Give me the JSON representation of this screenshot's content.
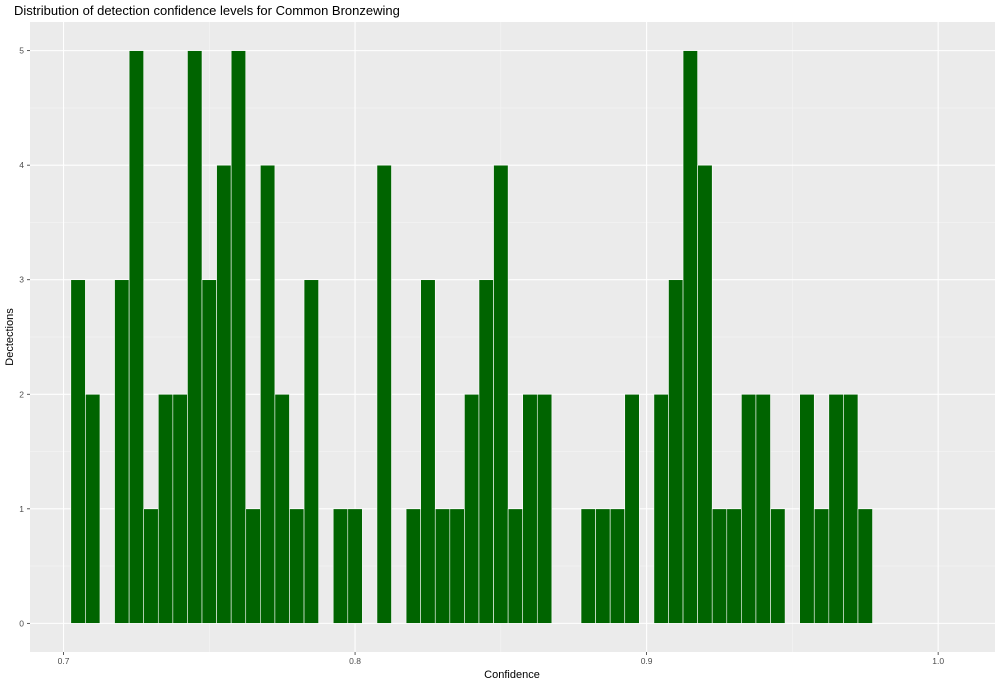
{
  "chart_data": {
    "type": "bar",
    "title": "Distribution of detection confidence levels for Common Bronzewing",
    "xlabel": "Confidence",
    "ylabel": "Dectections",
    "xlim": [
      0.6885,
      1.0195
    ],
    "ylim": [
      -0.25,
      5.25
    ],
    "x_ticks": [
      0.7,
      0.8,
      0.9,
      1.0
    ],
    "x_tick_labels": [
      "0.7",
      "0.8",
      "0.9",
      "1.0"
    ],
    "y_ticks": [
      0,
      1,
      2,
      3,
      4,
      5
    ],
    "y_tick_labels": [
      "0",
      "1",
      "2",
      "3",
      "4",
      "5"
    ],
    "grid": true,
    "legend": "none",
    "bin_width": 0.005,
    "bin_centers": [
      0.705,
      0.71,
      0.715,
      0.72,
      0.725,
      0.73,
      0.735,
      0.74,
      0.745,
      0.75,
      0.755,
      0.76,
      0.765,
      0.77,
      0.775,
      0.78,
      0.785,
      0.79,
      0.795,
      0.8,
      0.805,
      0.81,
      0.815,
      0.82,
      0.825,
      0.83,
      0.835,
      0.84,
      0.845,
      0.85,
      0.855,
      0.86,
      0.865,
      0.87,
      0.875,
      0.88,
      0.885,
      0.89,
      0.895,
      0.9,
      0.905,
      0.91,
      0.915,
      0.92,
      0.925,
      0.93,
      0.935,
      0.94,
      0.945,
      0.95,
      0.955,
      0.96,
      0.965,
      0.97,
      0.975
    ],
    "values": [
      3,
      2,
      0,
      3,
      5,
      1,
      2,
      2,
      5,
      3,
      4,
      5,
      1,
      4,
      2,
      1,
      3,
      0,
      1,
      1,
      0,
      4,
      0,
      1,
      3,
      1,
      1,
      2,
      3,
      4,
      1,
      2,
      2,
      0,
      0,
      1,
      1,
      1,
      2,
      0,
      2,
      3,
      5,
      4,
      1,
      1,
      2,
      2,
      1,
      0,
      2,
      1,
      2,
      2,
      1
    ],
    "colors": {
      "bar_fill": "#006400",
      "bar_outline": "#ffffff",
      "panel_background": "#ebebeb",
      "grid_major": "#ffffff",
      "grid_minor": "#f5f5f5"
    }
  }
}
